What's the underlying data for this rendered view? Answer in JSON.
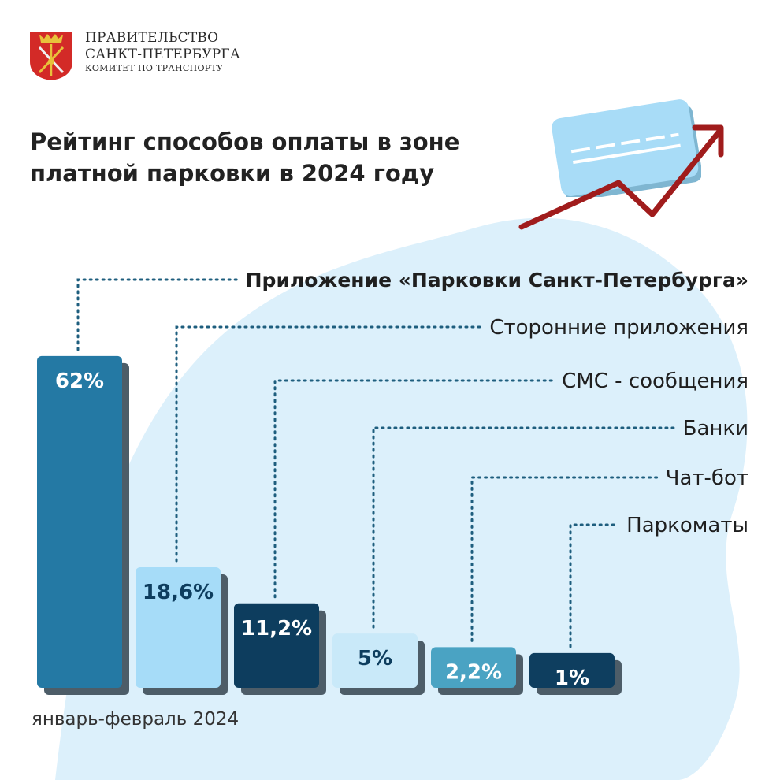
{
  "header": {
    "org_line1": "ПРАВИТЕЛЬСТВО",
    "org_line2": "САНКТ-ПЕТЕРБУРГА",
    "org_line3": "КОМИТЕТ ПО ТРАНСПОРТУ"
  },
  "title_line1": "Рейтинг способов оплаты в зоне",
  "title_line2": "платной парковки в 2024 году",
  "period": "январь-февраль 2024",
  "icons": [
    "coat-of-arms-icon",
    "card-icon",
    "growth-arrow-icon"
  ],
  "colors": {
    "blob": "#dcf0fb",
    "card": "#a8dcf7",
    "arrow": "#a01c1c",
    "leader": "#1e5e7e"
  },
  "chart_data": {
    "type": "bar",
    "categories": [
      "Приложение «Парковки Санкт-Петербурга»",
      "Сторонние приложения",
      "СМС - сообщения",
      "Банки",
      "Чат-бот",
      "Паркоматы"
    ],
    "values": [
      62,
      18.6,
      11.2,
      5,
      2.2,
      1
    ],
    "value_labels": [
      "62%",
      "18,6%",
      "11,2%",
      "5%",
      "2,2%",
      "1%"
    ],
    "colors": [
      "#2479a4",
      "#a6dcf8",
      "#0d3d5e",
      "#c9e9f9",
      "#4aa3c3",
      "#0e3e5f"
    ],
    "label_colors": [
      "#ffffff",
      "#0d3d5e",
      "#ffffff",
      "#0d3d5e",
      "#ffffff",
      "#ffffff"
    ],
    "bold_category": 0,
    "unit": "%"
  }
}
